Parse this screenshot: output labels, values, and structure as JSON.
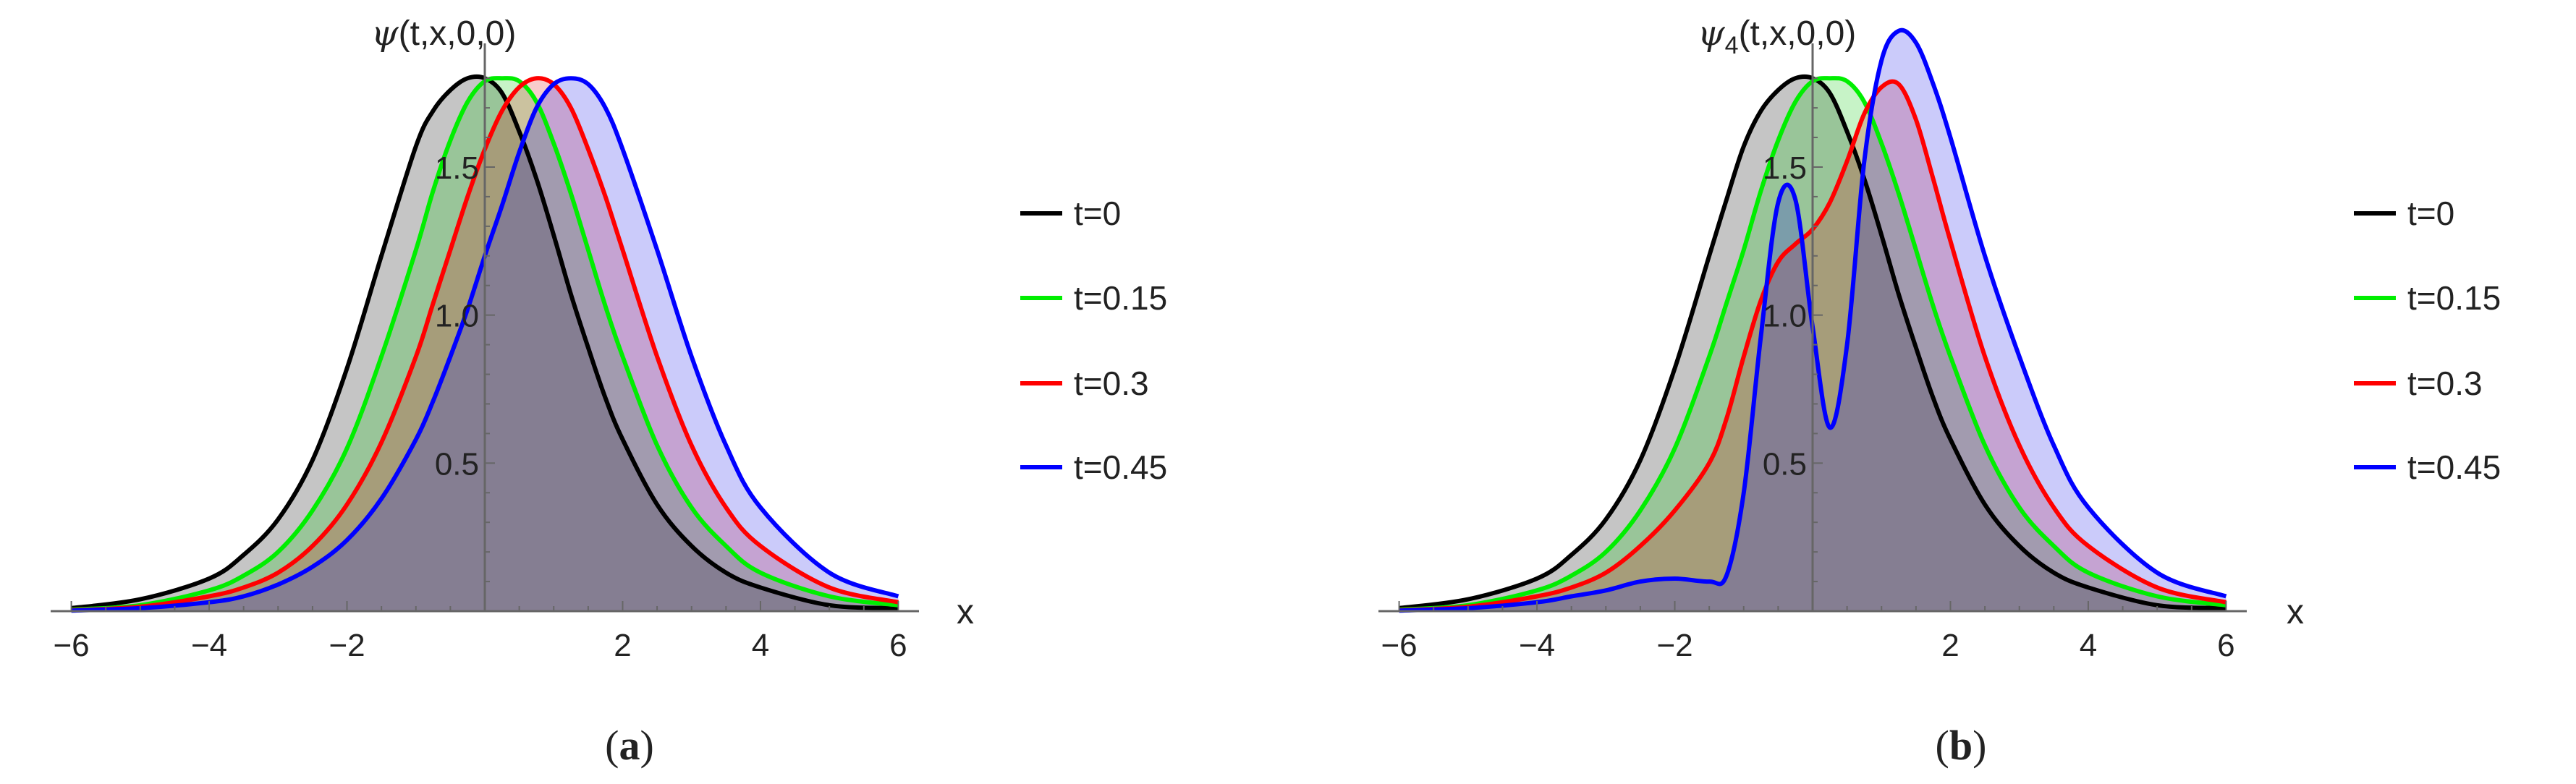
{
  "colors": {
    "axis": "#666666",
    "series": [
      "#000000",
      "#00ee00",
      "#ff0000",
      "#0000ff"
    ],
    "fills": [
      "rgba(64,64,64,0.30)",
      "rgba(0,200,0,0.22)",
      "rgba(220,0,0,0.20)",
      "rgba(20,20,230,0.22)"
    ]
  },
  "chart_data": [
    {
      "type": "area",
      "title": "",
      "ylabel": {
        "symbol": "ψ",
        "subscript": "",
        "args": "(t,x,0,0)"
      },
      "xlabel": "x",
      "xlim": [
        -6.3,
        6.3
      ],
      "ylim": [
        0,
        1.82
      ],
      "xticks": [
        -6,
        -4,
        -2,
        2,
        4,
        6
      ],
      "yticks": [
        0.5,
        1.0,
        1.5
      ],
      "ytick_labels": [
        "0.5",
        "1.0",
        "1.5"
      ],
      "legend": "right",
      "grid": false,
      "x": [
        -6,
        -5,
        -4,
        -3.5,
        -3,
        -2.5,
        -2,
        -1.5,
        -1,
        -0.75,
        -0.5,
        -0.25,
        0,
        0.25,
        0.5,
        0.75,
        1,
        1.25,
        1.5,
        1.75,
        2,
        2.5,
        3,
        3.5,
        4,
        5,
        6
      ],
      "series": [
        {
          "name": "t=0",
          "values": [
            0.01,
            0.04,
            0.11,
            0.19,
            0.31,
            0.51,
            0.82,
            1.2,
            1.57,
            1.69,
            1.76,
            1.8,
            1.8,
            1.75,
            1.62,
            1.46,
            1.27,
            1.07,
            0.89,
            0.72,
            0.58,
            0.36,
            0.22,
            0.13,
            0.08,
            0.02,
            0.01
          ]
        },
        {
          "name": "t=0.15",
          "values": [
            0.005,
            0.02,
            0.07,
            0.12,
            0.2,
            0.34,
            0.55,
            0.86,
            1.22,
            1.42,
            1.59,
            1.72,
            1.79,
            1.8,
            1.79,
            1.72,
            1.58,
            1.41,
            1.22,
            1.03,
            0.86,
            0.56,
            0.35,
            0.22,
            0.13,
            0.05,
            0.02
          ]
        },
        {
          "name": "t=0.3",
          "values": [
            0.003,
            0.015,
            0.05,
            0.08,
            0.13,
            0.22,
            0.36,
            0.57,
            0.86,
            1.04,
            1.22,
            1.4,
            1.56,
            1.69,
            1.77,
            1.8,
            1.78,
            1.7,
            1.56,
            1.4,
            1.22,
            0.86,
            0.56,
            0.35,
            0.22,
            0.08,
            0.03
          ]
        },
        {
          "name": "t=0.45",
          "values": [
            0.002,
            0.01,
            0.03,
            0.05,
            0.09,
            0.15,
            0.24,
            0.38,
            0.58,
            0.71,
            0.86,
            1.02,
            1.2,
            1.37,
            1.55,
            1.7,
            1.78,
            1.8,
            1.78,
            1.7,
            1.56,
            1.22,
            0.86,
            0.56,
            0.35,
            0.13,
            0.05
          ]
        }
      ]
    },
    {
      "type": "area",
      "title": "",
      "ylabel": {
        "symbol": "ψ",
        "subscript": "4",
        "args": "(t,x,0,0)"
      },
      "xlabel": "x",
      "xlim": [
        -6.3,
        6.3
      ],
      "ylim": [
        0,
        1.82
      ],
      "xticks": [
        -6,
        -4,
        -2,
        2,
        4,
        6
      ],
      "yticks": [
        0.5,
        1.0,
        1.5
      ],
      "ytick_labels": [
        "0.5",
        "1.0",
        "1.5"
      ],
      "legend": "right",
      "grid": false,
      "x": [
        -6,
        -5,
        -4,
        -3.5,
        -3,
        -2.5,
        -2,
        -1.5,
        -1.25,
        -1,
        -0.75,
        -0.5,
        -0.25,
        0,
        0.25,
        0.5,
        0.75,
        1,
        1.25,
        1.5,
        1.75,
        2,
        2.5,
        3,
        3.5,
        4,
        5,
        6
      ],
      "series": [
        {
          "name": "t=0",
          "values": [
            0.01,
            0.04,
            0.11,
            0.19,
            0.31,
            0.51,
            0.82,
            1.2,
            1.39,
            1.57,
            1.69,
            1.76,
            1.8,
            1.8,
            1.75,
            1.62,
            1.46,
            1.27,
            1.07,
            0.89,
            0.72,
            0.58,
            0.36,
            0.22,
            0.13,
            0.08,
            0.02,
            0.01
          ]
        },
        {
          "name": "t=0.15",
          "values": [
            0.005,
            0.02,
            0.07,
            0.12,
            0.2,
            0.34,
            0.55,
            0.86,
            1.04,
            1.22,
            1.42,
            1.59,
            1.72,
            1.79,
            1.8,
            1.79,
            1.72,
            1.58,
            1.41,
            1.22,
            1.03,
            0.86,
            0.56,
            0.35,
            0.22,
            0.13,
            0.05,
            0.02
          ]
        },
        {
          "name": "t=0.3",
          "values": [
            0.003,
            0.015,
            0.05,
            0.08,
            0.13,
            0.22,
            0.34,
            0.5,
            0.65,
            0.86,
            1.05,
            1.18,
            1.24,
            1.29,
            1.38,
            1.52,
            1.68,
            1.77,
            1.78,
            1.66,
            1.46,
            1.25,
            0.86,
            0.56,
            0.35,
            0.22,
            0.08,
            0.03
          ]
        },
        {
          "name": "t=0.45",
          "values": [
            0.002,
            0.01,
            0.03,
            0.05,
            0.07,
            0.1,
            0.11,
            0.1,
            0.12,
            0.4,
            0.93,
            1.38,
            1.39,
            0.96,
            0.62,
            0.9,
            1.52,
            1.86,
            1.96,
            1.92,
            1.78,
            1.6,
            1.2,
            0.86,
            0.56,
            0.35,
            0.13,
            0.05
          ]
        }
      ]
    }
  ],
  "captions": [
    "a",
    "b"
  ]
}
